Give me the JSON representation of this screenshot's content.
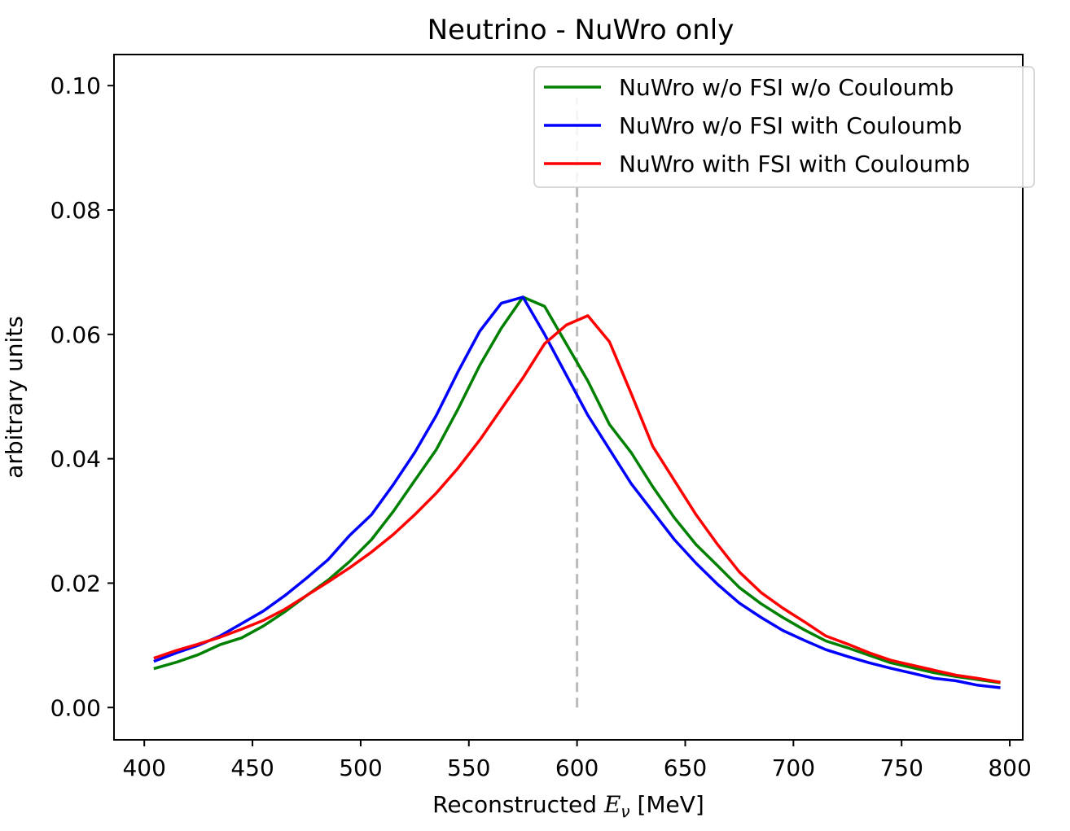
{
  "chart_data": {
    "type": "line",
    "title": "Neutrino - NuWro only",
    "xlabel_prefix": "Reconstructed ",
    "xlabel_var": "E",
    "xlabel_sub": "ν",
    "xlabel_suffix": " [MeV]",
    "ylabel": "arbitrary units",
    "xlim": [
      386,
      806
    ],
    "ylim": [
      -0.0052,
      0.105
    ],
    "xticks": [
      400,
      450,
      500,
      550,
      600,
      650,
      700,
      750,
      800
    ],
    "xtick_labels": [
      "400",
      "450",
      "500",
      "550",
      "600",
      "650",
      "700",
      "750",
      "800"
    ],
    "yticks": [
      0.0,
      0.02,
      0.04,
      0.06,
      0.08,
      0.1
    ],
    "ytick_labels": [
      "0.00",
      "0.02",
      "0.04",
      "0.06",
      "0.08",
      "0.10"
    ],
    "grid": false,
    "legend_position": "top-right",
    "vline": {
      "x": 600,
      "y_range": [
        0.0,
        0.098
      ],
      "color": "#bbbbbb",
      "style": "dashed"
    },
    "x": [
      405,
      415,
      425,
      435,
      445,
      455,
      465,
      475,
      485,
      495,
      505,
      515,
      525,
      535,
      545,
      555,
      565,
      575,
      585,
      595,
      605,
      615,
      625,
      635,
      645,
      655,
      665,
      675,
      685,
      695,
      705,
      715,
      725,
      735,
      745,
      755,
      765,
      775,
      785,
      795
    ],
    "series": [
      {
        "name": "NuWro w/o FSI w/o Couloumb",
        "color": "#008000",
        "values": [
          0.0063,
          0.0073,
          0.0085,
          0.0101,
          0.0112,
          0.0131,
          0.0154,
          0.018,
          0.0205,
          0.0235,
          0.027,
          0.0315,
          0.0365,
          0.0415,
          0.048,
          0.055,
          0.061,
          0.066,
          0.0645,
          0.0585,
          0.0525,
          0.0455,
          0.041,
          0.0355,
          0.0305,
          0.0262,
          0.0228,
          0.0193,
          0.0167,
          0.0145,
          0.0125,
          0.0107,
          0.0096,
          0.0084,
          0.0072,
          0.0064,
          0.0056,
          0.005,
          0.0045,
          0.004
        ]
      },
      {
        "name": "NuWro w/o FSI with Couloumb",
        "color": "#0000ff",
        "values": [
          0.0075,
          0.0088,
          0.01,
          0.0115,
          0.0135,
          0.0155,
          0.018,
          0.0208,
          0.0238,
          0.0277,
          0.031,
          0.0358,
          0.041,
          0.047,
          0.054,
          0.0605,
          0.065,
          0.066,
          0.06,
          0.0535,
          0.047,
          0.0415,
          0.036,
          0.0315,
          0.027,
          0.0232,
          0.0198,
          0.0168,
          0.0145,
          0.0124,
          0.0108,
          0.0093,
          0.0082,
          0.0072,
          0.0063,
          0.0055,
          0.0047,
          0.0043,
          0.0036,
          0.0032
        ]
      },
      {
        "name": "NuWro with FSI with Couloumb",
        "color": "#ff0000",
        "values": [
          0.008,
          0.0092,
          0.0102,
          0.0113,
          0.0126,
          0.014,
          0.0158,
          0.018,
          0.0202,
          0.0225,
          0.025,
          0.0278,
          0.031,
          0.0345,
          0.0385,
          0.043,
          0.048,
          0.053,
          0.0585,
          0.0615,
          0.063,
          0.0588,
          0.0505,
          0.042,
          0.0365,
          0.031,
          0.0262,
          0.0218,
          0.0185,
          0.016,
          0.0138,
          0.0115,
          0.0102,
          0.0088,
          0.0076,
          0.0068,
          0.006,
          0.0052,
          0.0047,
          0.0041
        ]
      }
    ]
  }
}
